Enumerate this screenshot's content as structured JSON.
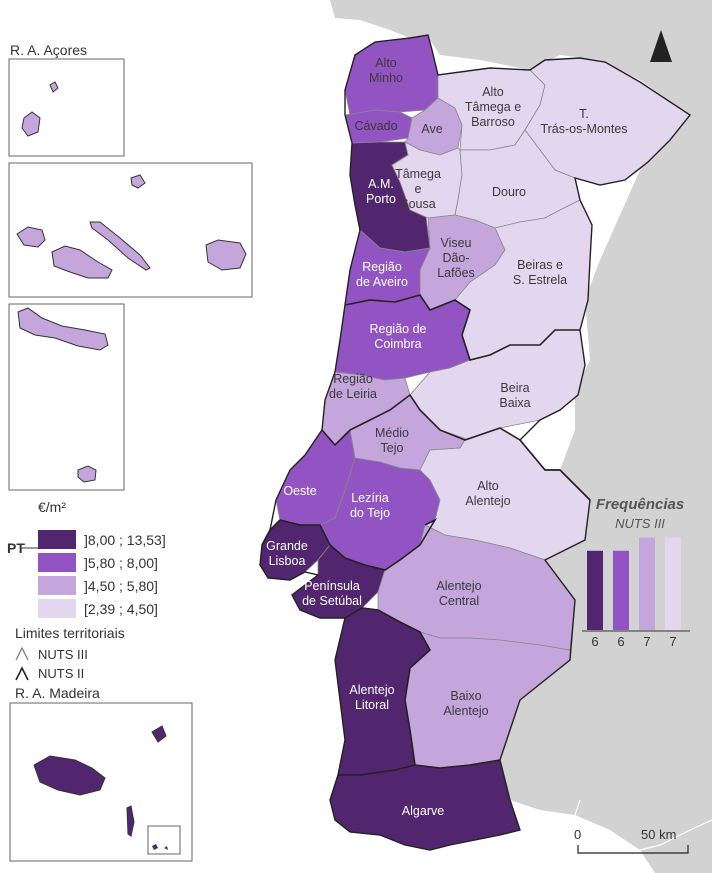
{
  "inset_acores_title": "R. A. Açores",
  "inset_madeira_title": "R. A. Madeira",
  "legend": {
    "unit": "€/m²",
    "pt_label": "PT",
    "classes": [
      {
        "label": "]8,00 ; 13,53]",
        "color": "#52266e"
      },
      {
        "label": "]5,80 ; 8,00]",
        "color": "#9254c2"
      },
      {
        "label": "]4,50 ; 5,80]",
        "color": "#c4a6dd"
      },
      {
        "label": "[2,39 ; 4,50]",
        "color": "#e3d7ef"
      }
    ]
  },
  "limits": {
    "title": "Limites territoriais",
    "nuts3": "NUTS III",
    "nuts2": "NUTS II"
  },
  "frequencies": {
    "title": "Frequências",
    "subtitle": "NUTS III",
    "counts": [
      6,
      6,
      7,
      7
    ]
  },
  "scale": {
    "start": "0",
    "end": "50 km"
  },
  "regions": {
    "alto_minho": "Alto|Minho",
    "cavado": "Cávado",
    "ave": "Ave",
    "alto_tamega": "Alto|Tâmega e|Barroso",
    "tras_os_montes": "T.|Trás-os-Montes",
    "am_porto": "A.M.|Porto",
    "tamega_sousa": "Tâmega|e|Sousa",
    "douro": "Douro",
    "viseu": "Viseu|Dão-|Lafões",
    "beiras": "Beiras e|S. Estrela",
    "aveiro": "Região|de Aveiro",
    "coimbra": "Região de|Coimbra",
    "leiria": "Região|de Leiria",
    "beira_baixa": "Beira|Baixa",
    "medio_tejo": "Médio|Tejo",
    "oeste": "Oeste",
    "leziria": "Lezíria|do Tejo",
    "alto_alentejo": "Alto|Alentejo",
    "grande_lisboa": "Grande|Lisboa",
    "setubal": "Península|de Setúbal",
    "alentejo_central": "Alentejo|Central",
    "alentejo_litoral": "Alentejo|Litoral",
    "baixo_alentejo": "Baixo|Alentejo",
    "algarve": "Algarve"
  }
}
